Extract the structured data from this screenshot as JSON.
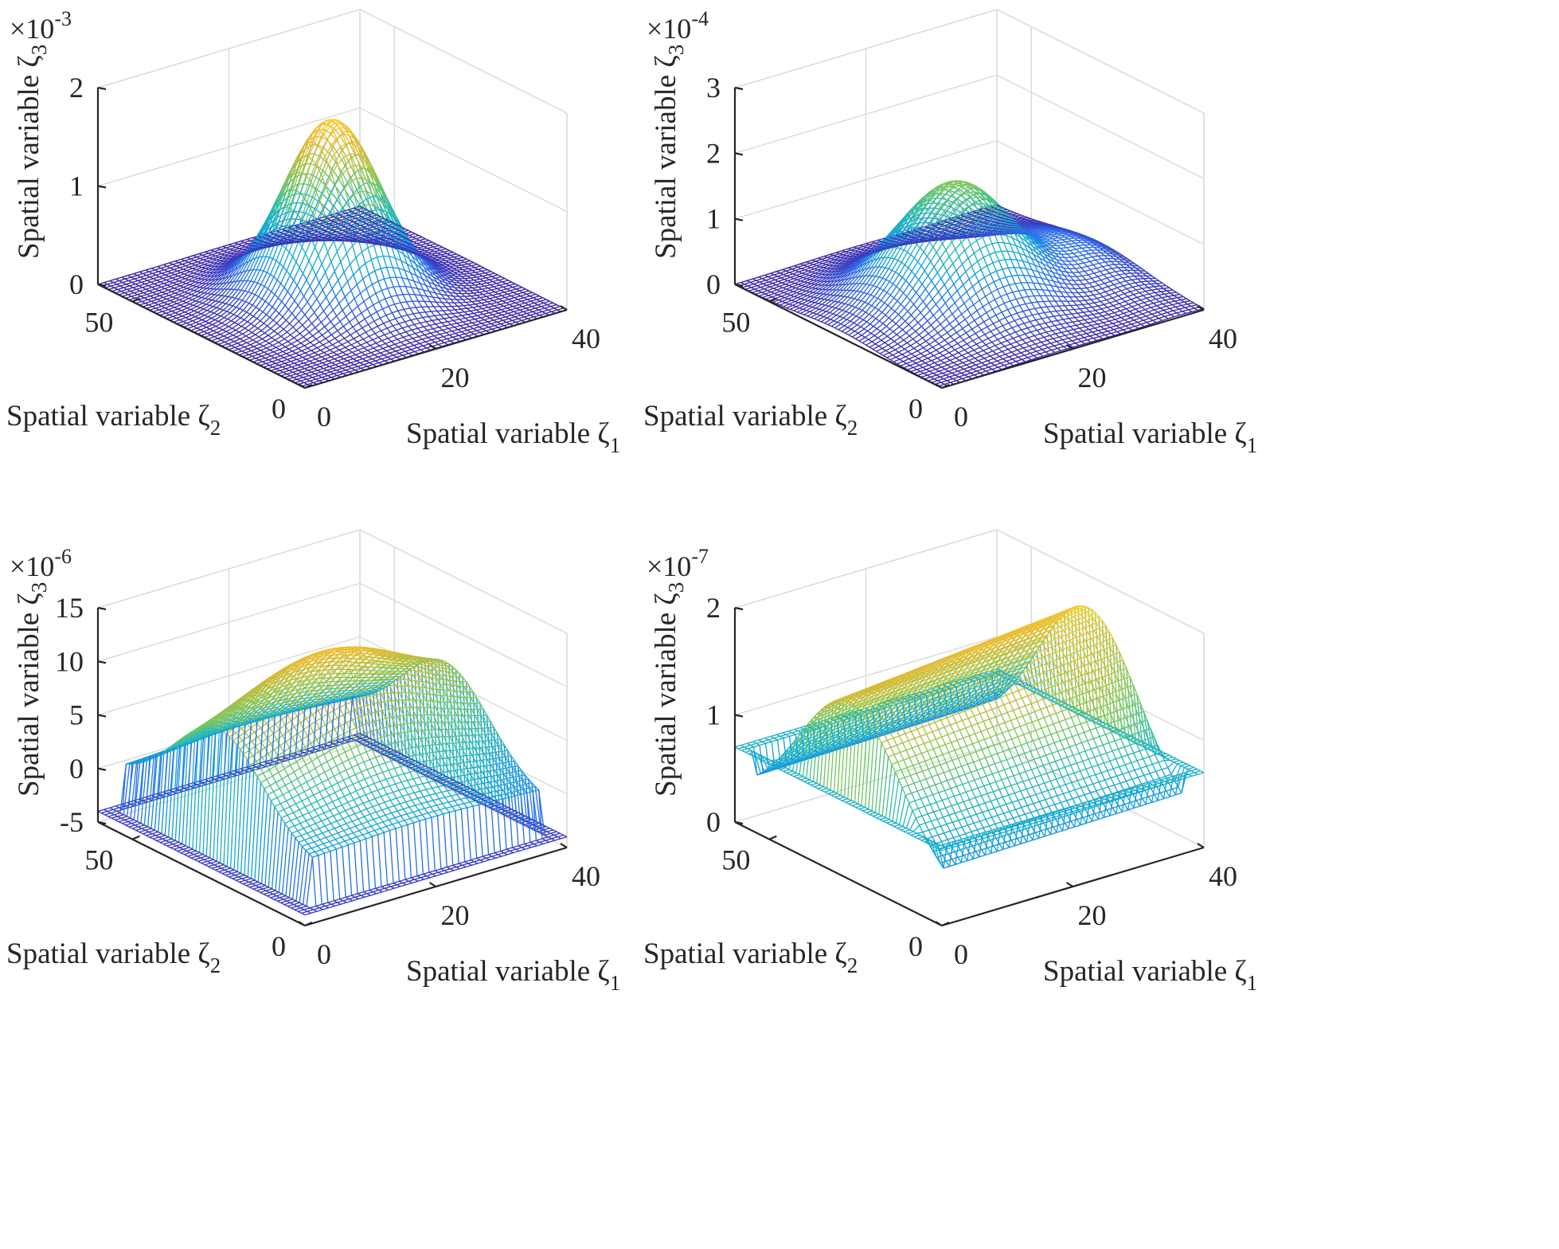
{
  "colors": {
    "text": "#262626",
    "grid": "#dcdcdc",
    "colormap": [
      "#3e26a8",
      "#2f69ea",
      "#13a5da",
      "#30bdac",
      "#7bc85b",
      "#cbbb3a",
      "#f8c132",
      "#f9fb15"
    ]
  },
  "chart_data": [
    {
      "type": "surface",
      "id": "panel-1",
      "xlabel": "Spatial variable ζ",
      "xlabel_sub": "1",
      "ylabel": "Spatial variable ζ",
      "ylabel_sub": "2",
      "zlabel": "Spatial variable ζ",
      "zlabel_sub": "3",
      "xlim": [
        0,
        40
      ],
      "ylim": [
        0,
        60
      ],
      "zlim": [
        0,
        2
      ],
      "xticks": [
        0,
        20,
        40
      ],
      "yticks": [
        0,
        50
      ],
      "zticks": [
        0,
        1,
        2
      ],
      "zticklabels": [
        "0",
        "1",
        "2"
      ],
      "exponent_base": "×10",
      "exponent_power": "-3",
      "surface": {
        "shape": "gaussian_peak",
        "peak_value": 1.8,
        "peak_at_x": 20,
        "peak_at_y": 30
      },
      "grid_color": "#dcdcdc"
    },
    {
      "type": "surface",
      "id": "panel-2",
      "xlabel": "Spatial variable ζ",
      "xlabel_sub": "1",
      "ylabel": "Spatial variable ζ",
      "ylabel_sub": "2",
      "zlabel": "Spatial variable ζ",
      "zlabel_sub": "3",
      "xlim": [
        0,
        40
      ],
      "ylim": [
        0,
        60
      ],
      "zlim": [
        0,
        3
      ],
      "xticks": [
        0,
        20,
        40
      ],
      "yticks": [
        0,
        50
      ],
      "zticks": [
        0,
        1,
        2,
        3
      ],
      "zticklabels": [
        "0",
        "1",
        "2",
        "3"
      ],
      "exponent_base": "×10",
      "exponent_power": "-4",
      "surface": {
        "shape": "broad_hill",
        "peak_value": 1.8,
        "peak_at_x": 20,
        "peak_at_y": 30
      },
      "grid_color": "#dcdcdc"
    },
    {
      "type": "surface",
      "id": "panel-3",
      "xlabel": "Spatial variable ζ",
      "xlabel_sub": "1",
      "ylabel": "Spatial variable ζ",
      "ylabel_sub": "2",
      "zlabel": "Spatial variable ζ",
      "zlabel_sub": "3",
      "xlim": [
        0,
        40
      ],
      "ylim": [
        0,
        60
      ],
      "zlim": [
        -5,
        15
      ],
      "xticks": [
        0,
        20,
        40
      ],
      "yticks": [
        0,
        50
      ],
      "zticks": [
        -5,
        0,
        5,
        10,
        15
      ],
      "zticklabels": [
        "-5",
        "0",
        "5",
        "10",
        "15"
      ],
      "exponent_base": "×10",
      "exponent_power": "-6",
      "surface": {
        "shape": "ridge_with_negative_edges",
        "peak_value": 12,
        "edge_value": -4
      },
      "grid_color": "#dcdcdc"
    },
    {
      "type": "surface",
      "id": "panel-4",
      "xlabel": "Spatial variable ζ",
      "xlabel_sub": "1",
      "ylabel": "Spatial variable ζ",
      "ylabel_sub": "2",
      "zlabel": "Spatial variable ζ",
      "zlabel_sub": "3",
      "xlim": [
        0,
        40
      ],
      "ylim": [
        0,
        60
      ],
      "zlim": [
        0,
        2
      ],
      "xticks": [
        0,
        20,
        40
      ],
      "yticks": [
        0,
        50
      ],
      "zticks": [
        0,
        1,
        2
      ],
      "zticklabels": [
        "0",
        "1",
        "2"
      ],
      "exponent_base": "×10",
      "exponent_power": "-7",
      "surface": {
        "shape": "plateau_ridge",
        "peak_value": 1.8,
        "edge_value": 0.7
      },
      "grid_color": "#dcdcdc"
    }
  ]
}
